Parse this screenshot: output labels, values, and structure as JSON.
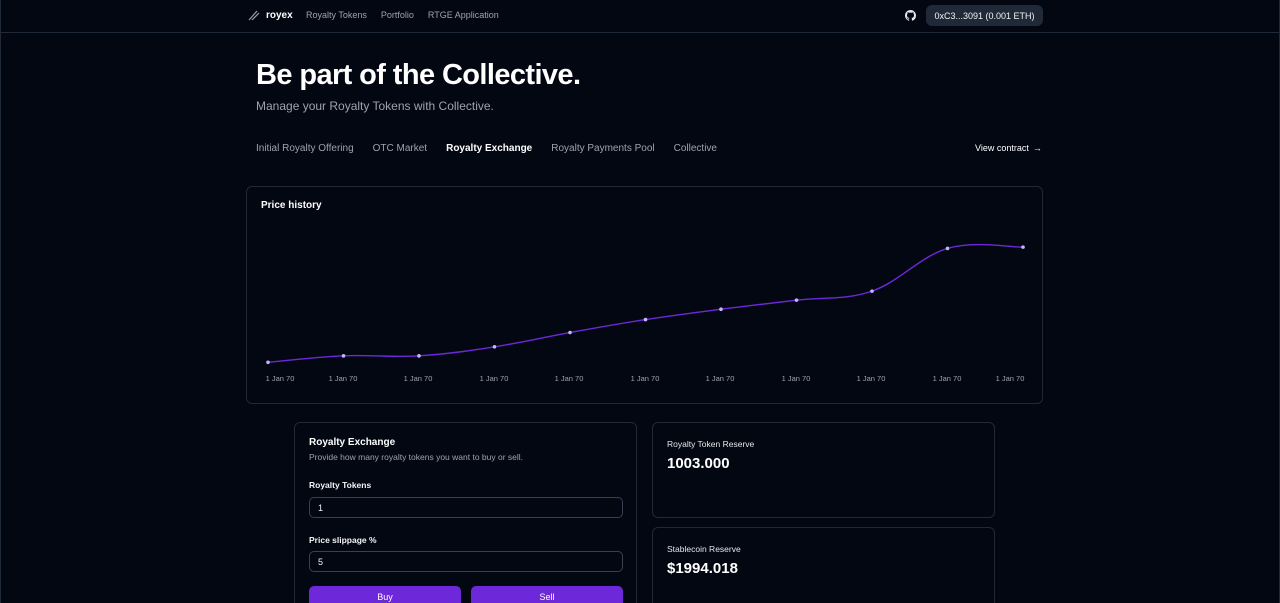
{
  "nav": {
    "logo_text": "royex",
    "links": [
      "Royalty Tokens",
      "Portfolio",
      "RTGE Application"
    ],
    "wallet_label": "0xC3...3091 (0.001 ETH)"
  },
  "hero": {
    "title": "Be part of the Collective.",
    "subtitle": "Manage your Royalty Tokens with Collective."
  },
  "tabs": [
    {
      "label": "Initial Royalty Offering",
      "active": false
    },
    {
      "label": "OTC Market",
      "active": false
    },
    {
      "label": "Royalty Exchange",
      "active": true
    },
    {
      "label": "Royalty Payments Pool",
      "active": false
    },
    {
      "label": "Collective",
      "active": false
    }
  ],
  "view_contract": {
    "label": "View contract",
    "arrow": "→"
  },
  "chart": {
    "title": "Price history",
    "line_color": "#6d28d9",
    "point_color": "#c4b5fd"
  },
  "chart_data": {
    "type": "line",
    "title": "Price history",
    "x": [
      "1 Jan 70",
      "1 Jan 70",
      "1 Jan 70",
      "1 Jan 70",
      "1 Jan 70",
      "1 Jan 70",
      "1 Jan 70",
      "1 Jan 70",
      "1 Jan 70",
      "1 Jan 70",
      "1 Jan 70"
    ],
    "series": [
      {
        "values": [
          1.98,
          1.985,
          1.985,
          1.992,
          2.003,
          2.013,
          2.021,
          2.028,
          2.035,
          2.068,
          2.069
        ]
      }
    ],
    "ylim": [
      1.93,
      2.1
    ],
    "grid": false,
    "xlabel": "",
    "ylabel": ""
  },
  "exchange": {
    "title": "Royalty Exchange",
    "description": "Provide how many royalty tokens you want to buy or sell.",
    "tokens_label": "Royalty Tokens",
    "tokens_value": "1",
    "slippage_label": "Price slippage %",
    "slippage_value": "5",
    "buy_label": "Buy",
    "sell_label": "Sell"
  },
  "reserves": {
    "token_label": "Royalty Token Reserve",
    "token_value": "1003.000",
    "stable_label": "Stablecoin Reserve",
    "stable_value": "$1994.018"
  }
}
